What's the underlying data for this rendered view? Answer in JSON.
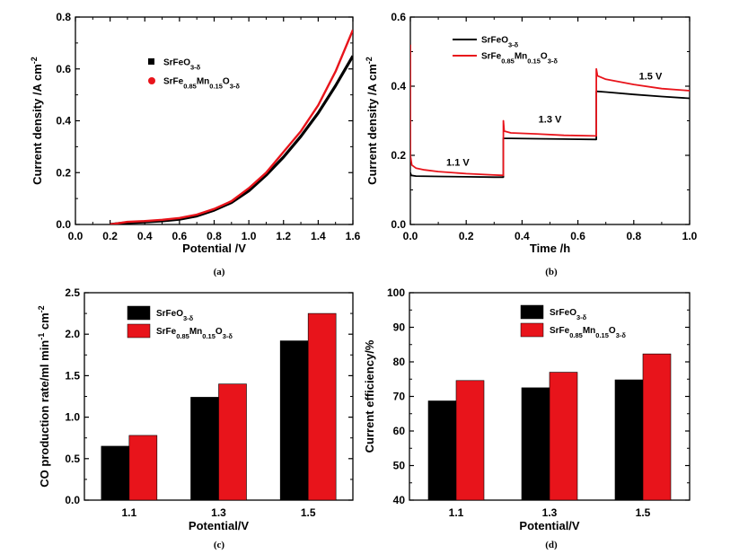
{
  "chart_data": [
    {
      "id": "a",
      "type": "line",
      "caption": "(a)",
      "xlabel": "Potential /V",
      "ylabel": "Current density /A cm",
      "ylabel_sup": "-2",
      "xlim": [
        0.0,
        1.6
      ],
      "ylim": [
        0.0,
        0.8
      ],
      "xticks": [
        0.0,
        0.2,
        0.4,
        0.6,
        0.8,
        1.0,
        1.2,
        1.4,
        1.6
      ],
      "yticks": [
        0.0,
        0.2,
        0.4,
        0.6,
        0.8
      ],
      "legend": "top-left",
      "series": [
        {
          "name": "SrFeO3-δ",
          "color": "#000000",
          "x": [
            0.2,
            0.3,
            0.4,
            0.5,
            0.6,
            0.7,
            0.8,
            0.9,
            1.0,
            1.1,
            1.2,
            1.3,
            1.4,
            1.5,
            1.6
          ],
          "y": [
            0.0,
            0.007,
            0.01,
            0.014,
            0.02,
            0.033,
            0.055,
            0.085,
            0.13,
            0.19,
            0.26,
            0.34,
            0.43,
            0.535,
            0.65
          ]
        },
        {
          "name": "SrFe0.85Mn0.15O3-δ",
          "color": "#e8141b",
          "x": [
            0.2,
            0.3,
            0.4,
            0.5,
            0.6,
            0.7,
            0.8,
            0.9,
            1.0,
            1.1,
            1.2,
            1.3,
            1.4,
            1.5,
            1.6
          ],
          "y": [
            0.0,
            0.01,
            0.013,
            0.018,
            0.025,
            0.038,
            0.06,
            0.09,
            0.14,
            0.2,
            0.28,
            0.36,
            0.46,
            0.59,
            0.75
          ]
        }
      ]
    },
    {
      "id": "b",
      "type": "line",
      "caption": "(b)",
      "xlabel": "Time /h",
      "ylabel": "Current density /A cm",
      "ylabel_sup": "-2",
      "xlim": [
        0.0,
        1.0
      ],
      "ylim": [
        0.0,
        0.6
      ],
      "xticks": [
        0.0,
        0.2,
        0.4,
        0.6,
        0.8,
        1.0
      ],
      "yticks": [
        0.0,
        0.2,
        0.4,
        0.6
      ],
      "legend": "top-left",
      "annotations": [
        {
          "text": "1.1 V",
          "x": 0.17,
          "y": 0.17
        },
        {
          "text": "1.3 V",
          "x": 0.5,
          "y": 0.295
        },
        {
          "text": "1.5 V",
          "x": 0.86,
          "y": 0.42
        }
      ],
      "series": [
        {
          "name": "SrFeO3-δ",
          "color": "#000000",
          "x": [
            0.0,
            0.003,
            0.02,
            0.1,
            0.2,
            0.3,
            0.333,
            0.333,
            0.336,
            0.36,
            0.45,
            0.55,
            0.666,
            0.666,
            0.67,
            0.7,
            0.8,
            0.9,
            1.0
          ],
          "y": [
            0.15,
            0.142,
            0.14,
            0.139,
            0.138,
            0.137,
            0.137,
            0.25,
            0.249,
            0.249,
            0.248,
            0.247,
            0.246,
            0.385,
            0.385,
            0.383,
            0.376,
            0.37,
            0.365
          ]
        },
        {
          "name": "SrFe0.85Mn0.15O3-δ",
          "color": "#e8141b",
          "x": [
            0.0,
            0.0,
            0.005,
            0.02,
            0.05,
            0.1,
            0.2,
            0.3,
            0.333,
            0.333,
            0.336,
            0.36,
            0.45,
            0.55,
            0.666,
            0.666,
            0.67,
            0.7,
            0.8,
            0.9,
            1.0
          ],
          "y": [
            0.52,
            0.2,
            0.172,
            0.163,
            0.158,
            0.153,
            0.147,
            0.143,
            0.142,
            0.3,
            0.27,
            0.265,
            0.262,
            0.258,
            0.256,
            0.45,
            0.43,
            0.42,
            0.405,
            0.393,
            0.387
          ]
        }
      ]
    },
    {
      "id": "c",
      "type": "bar",
      "caption": "(c)",
      "xlabel": "Potential/V",
      "ylabel": "CO production rate/ml min",
      "ylabel_sup1": "-1",
      "ylabel_mid": " cm",
      "ylabel_sup2": "-2",
      "categories": [
        "1.1",
        "1.3",
        "1.5"
      ],
      "ylim": [
        0.0,
        2.5
      ],
      "yticks": [
        0.0,
        0.5,
        1.0,
        1.5,
        2.0,
        2.5
      ],
      "legend": "top-left",
      "series": [
        {
          "name": "SrFeO3-δ",
          "color": "#000000",
          "values": [
            0.65,
            1.24,
            1.92
          ]
        },
        {
          "name": "SrFe0.85Mn0.15O3-δ",
          "color": "#e8141b",
          "values": [
            0.78,
            1.4,
            2.25
          ]
        }
      ]
    },
    {
      "id": "d",
      "type": "bar",
      "caption": "(d)",
      "xlabel": "Potential/V",
      "ylabel": "Current efficiency/%",
      "categories": [
        "1.1",
        "1.3",
        "1.5"
      ],
      "ylim": [
        40,
        100
      ],
      "yticks": [
        40,
        50,
        60,
        70,
        80,
        90,
        100
      ],
      "legend": "top-left",
      "series": [
        {
          "name": "SrFeO3-δ",
          "color": "#000000",
          "values": [
            68.7,
            72.5,
            74.8
          ]
        },
        {
          "name": "SrFe0.85Mn0.15O3-δ",
          "color": "#e8141b",
          "values": [
            74.6,
            77.0,
            82.3
          ]
        }
      ]
    }
  ]
}
